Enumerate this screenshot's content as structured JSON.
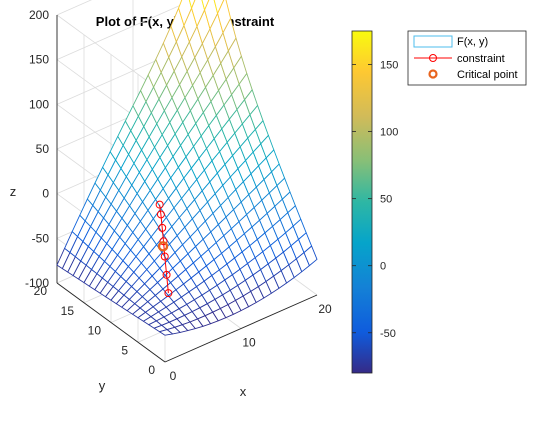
{
  "chart_data": {
    "type": "surface3d",
    "title": "Plot of F(x, y) with constraint",
    "xlabel": "x",
    "ylabel": "y",
    "zlabel": "z",
    "xlim": [
      0,
      20
    ],
    "ylim": [
      0,
      20
    ],
    "zlim": [
      -100,
      200
    ],
    "x_ticks": [
      "0",
      "10",
      "20"
    ],
    "y_ticks": [
      "0",
      "5",
      "10",
      "15",
      "20"
    ],
    "z_ticks": [
      "-100",
      "-50",
      "0",
      "50",
      "100",
      "150",
      "200"
    ],
    "grid": true,
    "colormap": "parula",
    "colorbar": {
      "range": [
        -80,
        175
      ],
      "ticks": [
        "-50",
        "0",
        "50",
        "100",
        "150"
      ],
      "tick_values": [
        -50,
        0,
        50,
        100,
        150
      ]
    },
    "surface": {
      "grid_n": 20,
      "corner_values": {
        "x0_y0": -70,
        "x20_y0": -60,
        "x0_y20": -80,
        "x20_y20": 175
      },
      "edge_mid_values": {
        "y0": -80,
        "y20": 60,
        "x0": -75,
        "x20": 50
      },
      "center_value": -10
    },
    "constraint_points": [
      {
        "x": 4.0,
        "y": 5.0,
        "z": -60
      },
      {
        "x": 4.4,
        "y": 5.9,
        "z": -45
      },
      {
        "x": 4.8,
        "y": 6.8,
        "z": -30
      },
      {
        "x": 5.2,
        "y": 7.6,
        "z": -18
      },
      {
        "x": 5.6,
        "y": 8.4,
        "z": -8
      },
      {
        "x": 6.0,
        "y": 9.2,
        "z": 2
      },
      {
        "x": 6.4,
        "y": 10.0,
        "z": 8
      }
    ],
    "critical_point": {
      "x": 5.0,
      "y": 7.4,
      "z": -22
    },
    "legend": {
      "position": "top-right",
      "entries": [
        "F(x, y)",
        "constraint",
        "Critical point"
      ]
    },
    "colors": {
      "constraint": "#ff0000",
      "critical_point": "#e8641e",
      "legend_surface": "#4dbeee",
      "axis": "#262626",
      "grid": "#dcdcdc"
    }
  }
}
